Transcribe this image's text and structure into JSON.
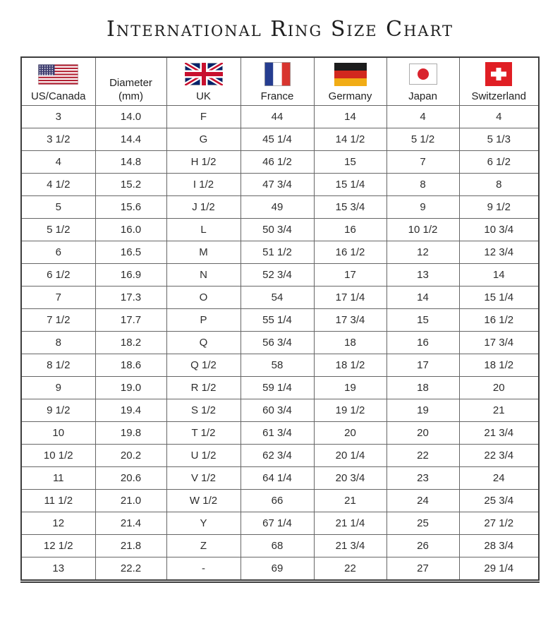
{
  "page": {
    "title": "International Ring Size Chart"
  },
  "colors": {
    "title_text": "#1f1f1f",
    "body_text": "#2d2d2d",
    "grid_border": "#666666",
    "outer_border": "#3d3d3d",
    "us_flag_blue": "#3c3b6e",
    "us_flag_red": "#b22234",
    "uk_flag_blue": "#012169",
    "uk_flag_red": "#c8102e",
    "france_blue": "#253d90",
    "france_red": "#d8352f",
    "germany_black": "#1c1c1c",
    "germany_red": "#d2281e",
    "germany_gold": "#f1ac15",
    "japan_red": "#d9232d",
    "swiss_red": "#e01e24"
  },
  "chart_data": {
    "type": "table",
    "title": "International Ring Size Chart",
    "columns": [
      {
        "label": "US/Canada",
        "flag": "us-flag"
      },
      {
        "label": "Diameter",
        "sublabel": "(mm)",
        "flag": null
      },
      {
        "label": "UK",
        "flag": "uk-flag"
      },
      {
        "label": "France",
        "flag": "france-flag"
      },
      {
        "label": "Germany",
        "flag": "germany-flag"
      },
      {
        "label": "Japan",
        "flag": "japan-flag"
      },
      {
        "label": "Switzerland",
        "flag": "switzerland-flag"
      }
    ],
    "rows": [
      [
        "3",
        "14.0",
        "F",
        "44",
        "14",
        "4",
        "4"
      ],
      [
        "3 1/2",
        "14.4",
        "G",
        "45 1/4",
        "14 1/2",
        "5 1/2",
        "5 1/3"
      ],
      [
        "4",
        "14.8",
        "H 1/2",
        "46 1/2",
        "15",
        "7",
        "6 1/2"
      ],
      [
        "4 1/2",
        "15.2",
        "I 1/2",
        "47 3/4",
        "15 1/4",
        "8",
        "8"
      ],
      [
        "5",
        "15.6",
        "J 1/2",
        "49",
        "15 3/4",
        "9",
        "9 1/2"
      ],
      [
        "5 1/2",
        "16.0",
        "L",
        "50 3/4",
        "16",
        "10 1/2",
        "10 3/4"
      ],
      [
        "6",
        "16.5",
        "M",
        "51 1/2",
        "16 1/2",
        "12",
        "12 3/4"
      ],
      [
        "6 1/2",
        "16.9",
        "N",
        "52 3/4",
        "17",
        "13",
        "14"
      ],
      [
        "7",
        "17.3",
        "O",
        "54",
        "17 1/4",
        "14",
        "15 1/4"
      ],
      [
        "7 1/2",
        "17.7",
        "P",
        "55 1/4",
        "17 3/4",
        "15",
        "16 1/2"
      ],
      [
        "8",
        "18.2",
        "Q",
        "56 3/4",
        "18",
        "16",
        "17 3/4"
      ],
      [
        "8 1/2",
        "18.6",
        "Q 1/2",
        "58",
        "18 1/2",
        "17",
        "18 1/2"
      ],
      [
        "9",
        "19.0",
        "R 1/2",
        "59 1/4",
        "19",
        "18",
        "20"
      ],
      [
        "9 1/2",
        "19.4",
        "S 1/2",
        "60 3/4",
        "19 1/2",
        "19",
        "21"
      ],
      [
        "10",
        "19.8",
        "T 1/2",
        "61 3/4",
        "20",
        "20",
        "21 3/4"
      ],
      [
        "10 1/2",
        "20.2",
        "U 1/2",
        "62 3/4",
        "20 1/4",
        "22",
        "22 3/4"
      ],
      [
        "11",
        "20.6",
        "V 1/2",
        "64 1/4",
        "20 3/4",
        "23",
        "24"
      ],
      [
        "11 1/2",
        "21.0",
        "W 1/2",
        "66",
        "21",
        "24",
        "25 3/4"
      ],
      [
        "12",
        "21.4",
        "Y",
        "67 1/4",
        "21 1/4",
        "25",
        "27 1/2"
      ],
      [
        "12 1/2",
        "21.8",
        "Z",
        "68",
        "21 3/4",
        "26",
        "28 3/4"
      ],
      [
        "13",
        "22.2",
        "-",
        "69",
        "22",
        "27",
        "29 1/4"
      ]
    ]
  }
}
